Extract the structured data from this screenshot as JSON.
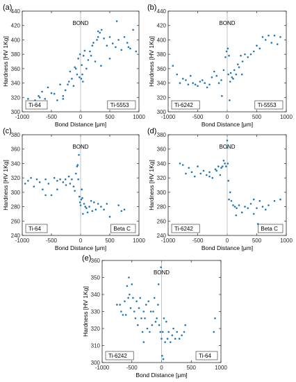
{
  "chart_data": [
    {
      "panel_label": "(a)",
      "type": "scatter",
      "xlabel": "Bond Distance [μm]",
      "ylabel": "Hardness [HV 1Kg]",
      "bond_label": "BOND",
      "left_material": "Ti-64",
      "right_material": "Ti-5553",
      "xlim": [
        -1000,
        1000
      ],
      "ylim": [
        300,
        440
      ],
      "xticks": [
        -1000,
        -500,
        0,
        500,
        1000
      ],
      "yticks": [
        300,
        320,
        340,
        360,
        380,
        400,
        420,
        440
      ],
      "marker_color": "#1f77b4",
      "x": [
        -900,
        -850,
        -780,
        -720,
        -700,
        -660,
        -610,
        -560,
        -500,
        -450,
        -400,
        -350,
        -300,
        -260,
        -220,
        -200,
        -180,
        -150,
        -120,
        -100,
        -80,
        -60,
        -40,
        -20,
        -10,
        10,
        20,
        30,
        40,
        50,
        70,
        100,
        130,
        160,
        180,
        200,
        220,
        250,
        280,
        300,
        330,
        360,
        400,
        450,
        500,
        550,
        600,
        650,
        700,
        750,
        800,
        850,
        900,
        950,
        300,
        350,
        500,
        620,
        820,
        -700,
        -300
      ],
      "y": [
        318,
        312,
        316,
        322,
        312,
        328,
        318,
        334,
        326,
        325,
        316,
        338,
        322,
        330,
        338,
        342,
        356,
        346,
        336,
        362,
        360,
        352,
        374,
        348,
        380,
        346,
        365,
        352,
        342,
        378,
        385,
        360,
        372,
        384,
        378,
        392,
        396,
        370,
        400,
        404,
        410,
        414,
        402,
        392,
        404,
        395,
        390,
        400,
        386,
        404,
        396,
        388,
        414,
        384,
        412,
        364,
        374,
        426,
        390,
        320,
        318
      ]
    },
    {
      "panel_label": "(b)",
      "type": "scatter",
      "xlabel": "Bond Distance [μm]",
      "ylabel": "Hardness [HV 1Kg]",
      "bond_label": "BOND",
      "left_material": "Ti-6242",
      "right_material": "Ti-5553",
      "xlim": [
        -1000,
        1000
      ],
      "ylim": [
        300,
        440
      ],
      "xticks": [
        -1000,
        -500,
        0,
        500,
        1000
      ],
      "yticks": [
        300,
        320,
        340,
        360,
        380,
        400,
        420,
        440
      ],
      "marker_color": "#1f77b4",
      "x": [
        -920,
        -850,
        -800,
        -750,
        -700,
        -660,
        -620,
        -580,
        -540,
        -500,
        -460,
        -420,
        -380,
        -340,
        -300,
        -260,
        -220,
        -180,
        -140,
        -100,
        -60,
        -30,
        -10,
        10,
        20,
        30,
        50,
        60,
        80,
        100,
        120,
        150,
        180,
        200,
        230,
        260,
        300,
        350,
        400,
        450,
        500,
        550,
        600,
        650,
        700,
        750,
        800,
        850,
        900,
        -90,
        40,
        250
      ],
      "y": [
        364,
        352,
        340,
        346,
        344,
        338,
        350,
        340,
        338,
        336,
        342,
        344,
        340,
        334,
        338,
        348,
        356,
        350,
        340,
        344,
        358,
        376,
        384,
        388,
        352,
        378,
        342,
        354,
        348,
        346,
        358,
        352,
        366,
        362,
        378,
        370,
        380,
        376,
        380,
        384,
        392,
        388,
        404,
        400,
        406,
        396,
        406,
        394,
        404,
        322,
        316,
        352
      ]
    },
    {
      "panel_label": "(c)",
      "type": "scatter",
      "xlabel": "Bond Distance [μm]",
      "ylabel": "Hardness [HV 1Kg]",
      "bond_label": "BOND",
      "left_material": "Ti-64",
      "right_material": "Beta C",
      "xlim": [
        -1000,
        1000
      ],
      "ylim": [
        240,
        380
      ],
      "xticks": [
        -1000,
        -500,
        0,
        500,
        1000
      ],
      "yticks": [
        240,
        260,
        280,
        300,
        320,
        340,
        360,
        380
      ],
      "marker_color": "#1f77b4",
      "x": [
        -950,
        -900,
        -850,
        -800,
        -750,
        -700,
        -650,
        -600,
        -550,
        -500,
        -450,
        -400,
        -350,
        -300,
        -250,
        -200,
        -180,
        -150,
        -120,
        -100,
        -80,
        -60,
        -50,
        -40,
        -30,
        -20,
        -10,
        0,
        10,
        20,
        30,
        40,
        60,
        80,
        100,
        120,
        150,
        180,
        200,
        230,
        260,
        300,
        350,
        400,
        450,
        500,
        650,
        700,
        750,
        -600,
        -400,
        -260
      ],
      "y": [
        312,
        316,
        320,
        308,
        318,
        314,
        304,
        318,
        312,
        296,
        320,
        316,
        318,
        314,
        310,
        322,
        312,
        318,
        308,
        302,
        326,
        336,
        338,
        318,
        352,
        294,
        286,
        282,
        290,
        304,
        292,
        270,
        284,
        280,
        278,
        272,
        280,
        288,
        274,
        286,
        276,
        284,
        280,
        276,
        284,
        266,
        282,
        274,
        276,
        296,
        304,
        318
      ]
    },
    {
      "panel_label": "(d)",
      "type": "scatter",
      "xlabel": "Bond Distance [μm]",
      "ylabel": "Hardness [HV 1Kg]",
      "bond_label": "BOND",
      "left_material": "Ti-6242",
      "right_material": "Beta C",
      "xlim": [
        -1000,
        1000
      ],
      "ylim": [
        240,
        380
      ],
      "xticks": [
        -1000,
        -500,
        0,
        500,
        1000
      ],
      "yticks": [
        240,
        260,
        280,
        300,
        320,
        340,
        360,
        380
      ],
      "marker_color": "#1f77b4",
      "x": [
        -800,
        -750,
        -700,
        -650,
        -600,
        -550,
        -500,
        -450,
        -400,
        -350,
        -300,
        -250,
        -200,
        -180,
        -150,
        -120,
        -100,
        -80,
        -60,
        -40,
        -20,
        0,
        10,
        20,
        30,
        50,
        70,
        100,
        130,
        160,
        200,
        250,
        300,
        350,
        400,
        450,
        500,
        550,
        600,
        650,
        700,
        800,
        900,
        0,
        -300,
        150,
        450,
        520
      ],
      "y": [
        340,
        338,
        326,
        334,
        328,
        322,
        336,
        326,
        330,
        324,
        328,
        320,
        332,
        330,
        336,
        324,
        334,
        336,
        344,
        340,
        336,
        372,
        340,
        316,
        290,
        300,
        288,
        282,
        280,
        278,
        282,
        272,
        280,
        278,
        284,
        270,
        278,
        288,
        280,
        276,
        282,
        288,
        290,
        362,
        322,
        268,
        290,
        256
      ]
    },
    {
      "panel_label": "(e)",
      "type": "scatter",
      "xlabel": "Bond Distance [μm]",
      "ylabel": "Hardness [HV 1Kg]",
      "bond_label": "BOND",
      "left_material": "Ti-6242",
      "right_material": "Ti-64",
      "xlim": [
        -1000,
        1000
      ],
      "ylim": [
        300,
        360
      ],
      "xticks": [
        -1000,
        -500,
        0,
        500,
        1000
      ],
      "yticks": [
        300,
        310,
        320,
        330,
        340,
        350,
        360
      ],
      "marker_color": "#1f77b4",
      "x": [
        -750,
        -700,
        -680,
        -650,
        -620,
        -600,
        -580,
        -560,
        -540,
        -520,
        -500,
        -480,
        -460,
        -440,
        -420,
        -400,
        -380,
        -360,
        -340,
        -320,
        -300,
        -280,
        -260,
        -240,
        -220,
        -200,
        -180,
        -160,
        -140,
        -120,
        -100,
        -80,
        -60,
        -40,
        -20,
        0,
        10,
        20,
        40,
        60,
        80,
        100,
        120,
        150,
        180,
        200,
        230,
        260,
        300,
        340,
        380,
        400,
        880,
        900,
        -10,
        30,
        -550,
        -300,
        -50
      ],
      "y": [
        334,
        334,
        330,
        328,
        336,
        328,
        345,
        338,
        340,
        332,
        346,
        338,
        330,
        326,
        336,
        322,
        332,
        338,
        326,
        318,
        330,
        326,
        334,
        320,
        336,
        318,
        330,
        322,
        330,
        338,
        324,
        326,
        334,
        322,
        318,
        314,
        304,
        318,
        326,
        312,
        324,
        314,
        318,
        312,
        316,
        320,
        314,
        318,
        314,
        316,
        318,
        322,
        318,
        326,
        356,
        302,
        350,
        312,
        346
      ]
    }
  ]
}
